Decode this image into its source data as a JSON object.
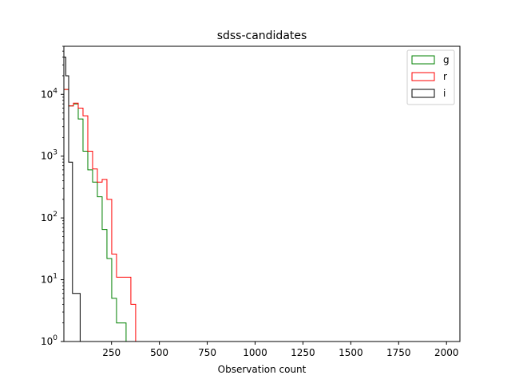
{
  "chart_data": {
    "type": "histogram",
    "title": "sdss-candidates",
    "xlabel": "Observation count",
    "ylabel": "",
    "xlim": [
      1,
      2070
    ],
    "ylim": [
      1,
      60000
    ],
    "yscale": "log",
    "bin_width": 25,
    "x_ticks": [
      250,
      500,
      750,
      1000,
      1250,
      1500,
      1750,
      2000
    ],
    "x_tick_labels": [
      "250",
      "500",
      "750",
      "1000",
      "1250",
      "1500",
      "1750",
      "2000"
    ],
    "y_ticks": [
      1,
      10,
      100,
      1000,
      10000
    ],
    "y_tick_labels": [
      {
        "base": "10",
        "exp": "0"
      },
      {
        "base": "10",
        "exp": "1"
      },
      {
        "base": "10",
        "exp": "2"
      },
      {
        "base": "10",
        "exp": "3"
      },
      {
        "base": "10",
        "exp": "4"
      }
    ],
    "legend": {
      "placement": "upper-right"
    },
    "grid": false,
    "series": [
      {
        "name": "g",
        "color": "#008000",
        "bins": [
          1,
          26,
          51,
          76,
          101,
          126,
          151,
          176,
          201,
          226,
          251,
          276,
          301,
          326
        ],
        "counts": [
          12000,
          6500,
          7000,
          4000,
          1200,
          600,
          380,
          220,
          65,
          22,
          5,
          2,
          2
        ]
      },
      {
        "name": "r",
        "color": "#ff0000",
        "bins": [
          1,
          26,
          51,
          76,
          101,
          126,
          151,
          176,
          201,
          226,
          251,
          276,
          301,
          326,
          351,
          376
        ],
        "counts": [
          12000,
          6500,
          7200,
          6000,
          4500,
          1200,
          620,
          380,
          420,
          200,
          26,
          11,
          11,
          11,
          4
        ]
      },
      {
        "name": "i",
        "color": "#000000",
        "bins": [
          1,
          11,
          26,
          46,
          66,
          86
        ],
        "counts": [
          40000,
          20000,
          800,
          6,
          6
        ]
      }
    ]
  }
}
